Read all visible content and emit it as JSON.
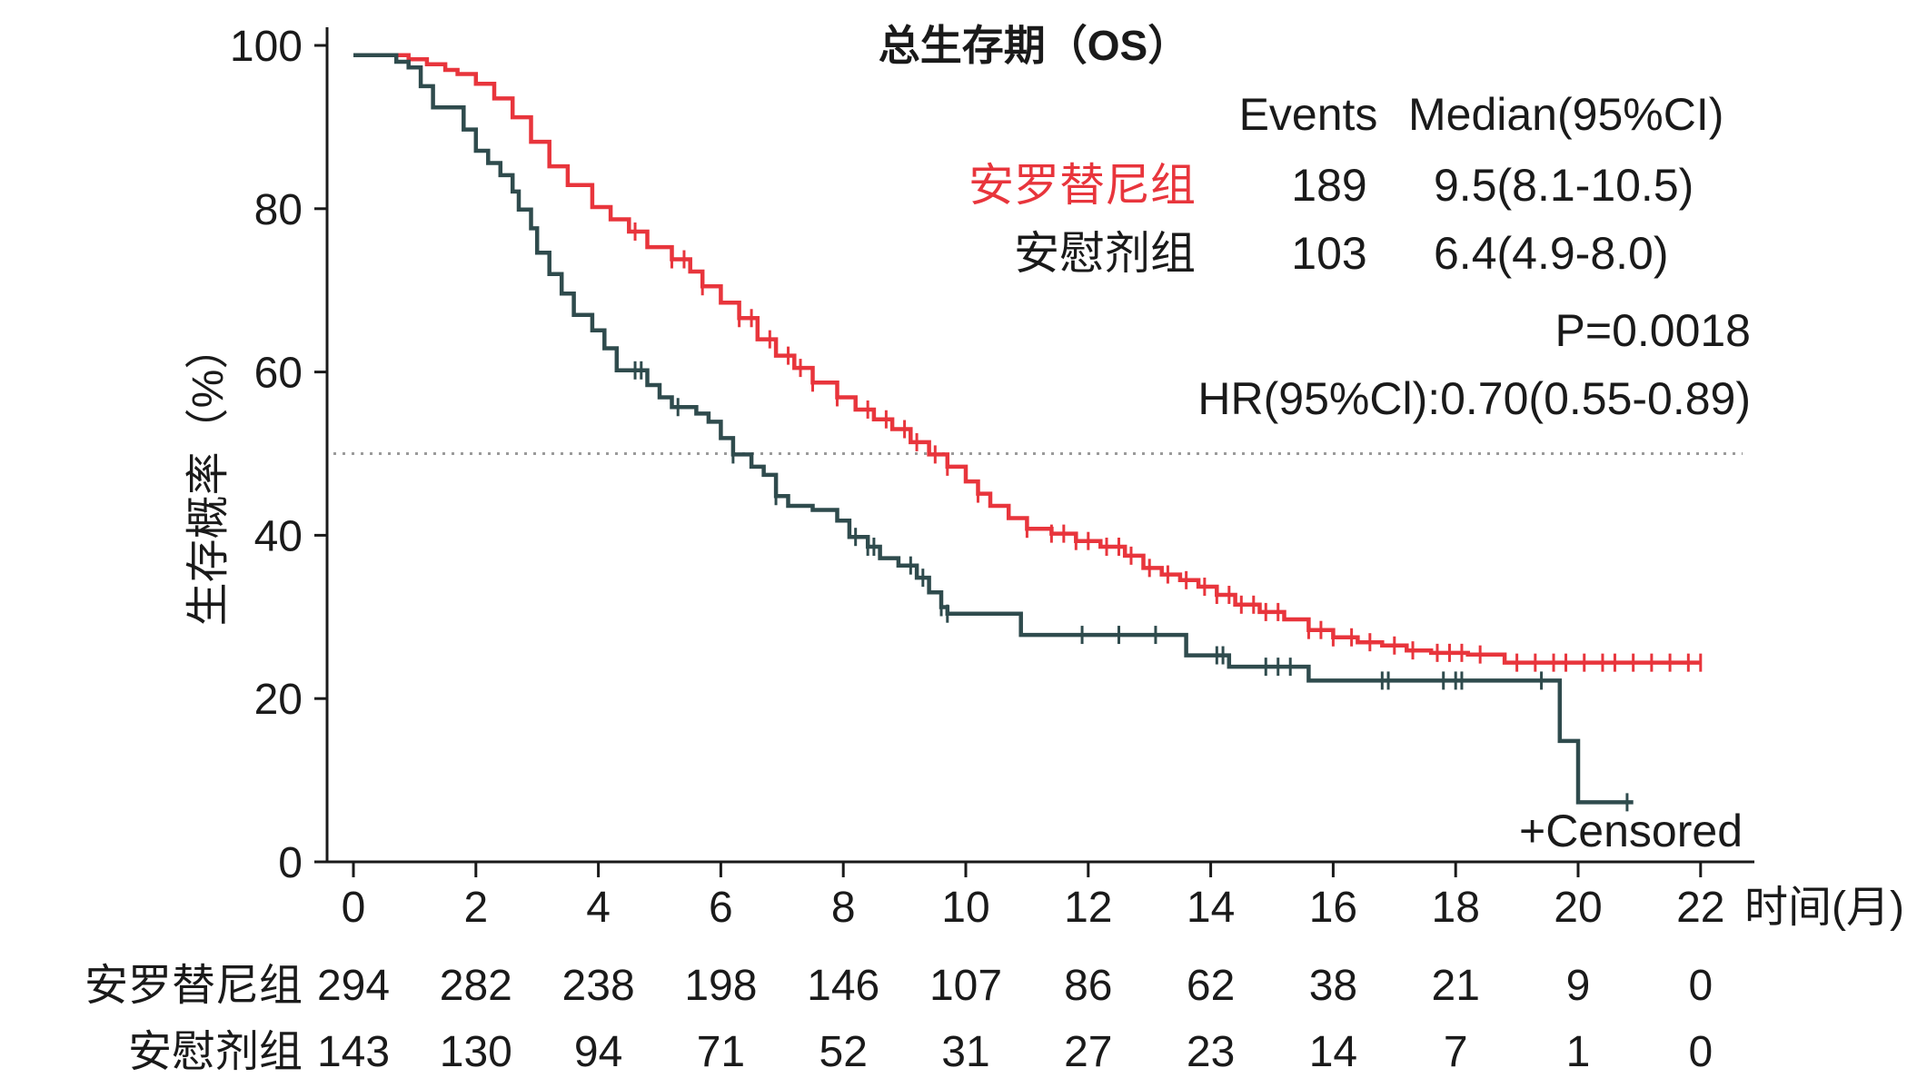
{
  "chart_data": {
    "type": "line",
    "title": "总生存期（OS）",
    "xlabel": "时间(月)",
    "ylabel": "生存概率（%）",
    "xlim": [
      0,
      22
    ],
    "ylim": [
      0,
      100
    ],
    "x_ticks": [
      0,
      2,
      4,
      6,
      8,
      10,
      12,
      14,
      16,
      18,
      20,
      22
    ],
    "y_ticks": [
      0,
      20,
      40,
      60,
      80,
      100
    ],
    "grid": false,
    "legend_placement": "top-right",
    "reference_line_y": 50,
    "legend": {
      "events_header": "Events",
      "median_header": "Median(95%CI)"
    },
    "stats": {
      "p_value": "P=0.0018",
      "hr": "HR(95%Cl):0.70(0.55-0.89)"
    },
    "censored_label": "+Censored",
    "series": [
      {
        "name": "安罗替尼组",
        "color": "#e8353c",
        "events": 189,
        "median": "9.5(8.1-10.5)",
        "points": [
          [
            0,
            98.8
          ],
          [
            0.9,
            98.3
          ],
          [
            1.2,
            97.7
          ],
          [
            1.5,
            97.0
          ],
          [
            1.7,
            96.5
          ],
          [
            2.0,
            95.3
          ],
          [
            2.3,
            93.5
          ],
          [
            2.6,
            91.2
          ],
          [
            2.9,
            88.2
          ],
          [
            3.2,
            85.2
          ],
          [
            3.5,
            82.9
          ],
          [
            3.9,
            80.2
          ],
          [
            4.2,
            78.7
          ],
          [
            4.5,
            77.2
          ],
          [
            4.8,
            75.3
          ],
          [
            5.2,
            73.8
          ],
          [
            5.5,
            72.3
          ],
          [
            5.7,
            70.5
          ],
          [
            6.0,
            68.5
          ],
          [
            6.3,
            66.6
          ],
          [
            6.6,
            64.0
          ],
          [
            6.9,
            62.0
          ],
          [
            7.2,
            60.5
          ],
          [
            7.5,
            58.7
          ],
          [
            7.9,
            56.9
          ],
          [
            8.2,
            55.4
          ],
          [
            8.5,
            54.2
          ],
          [
            8.8,
            53.0
          ],
          [
            9.1,
            51.4
          ],
          [
            9.4,
            49.9
          ],
          [
            9.7,
            48.4
          ],
          [
            10.0,
            46.6
          ],
          [
            10.2,
            45.1
          ],
          [
            10.4,
            43.6
          ],
          [
            10.7,
            42.1
          ],
          [
            11.0,
            40.8
          ],
          [
            11.4,
            40.2
          ],
          [
            11.8,
            39.3
          ],
          [
            12.2,
            38.6
          ],
          [
            12.6,
            37.5
          ],
          [
            12.9,
            36.0
          ],
          [
            13.2,
            35.2
          ],
          [
            13.5,
            34.5
          ],
          [
            13.8,
            33.7
          ],
          [
            14.1,
            32.7
          ],
          [
            14.4,
            31.5
          ],
          [
            14.8,
            30.6
          ],
          [
            15.2,
            29.7
          ],
          [
            15.6,
            28.4
          ],
          [
            16.0,
            27.5
          ],
          [
            16.4,
            26.9
          ],
          [
            16.8,
            26.5
          ],
          [
            17.2,
            25.9
          ],
          [
            17.6,
            25.6
          ],
          [
            18.2,
            25.4
          ],
          [
            18.8,
            24.4
          ],
          [
            22.0,
            24.4
          ]
        ],
        "censored": [
          4.6,
          5.2,
          5.4,
          5.7,
          6.3,
          6.5,
          6.8,
          7.1,
          7.3,
          7.5,
          7.9,
          8.4,
          8.7,
          9.0,
          9.2,
          9.5,
          9.7,
          10.2,
          11.0,
          11.4,
          11.6,
          11.8,
          12.0,
          12.3,
          12.5,
          12.7,
          13.0,
          13.3,
          13.6,
          13.9,
          14.1,
          14.3,
          14.5,
          14.7,
          14.9,
          15.1,
          15.6,
          15.8,
          16.0,
          16.3,
          16.6,
          17.0,
          17.3,
          17.7,
          17.9,
          18.1,
          18.4,
          19.0,
          19.3,
          19.6,
          19.8,
          20.1,
          20.4,
          20.6,
          20.9,
          21.2,
          21.5,
          21.8,
          22.0
        ],
        "at_risk": [
          294,
          282,
          238,
          198,
          146,
          107,
          86,
          62,
          38,
          21,
          9,
          0
        ]
      },
      {
        "name": "安慰剂组",
        "color": "#2f4b4d",
        "events": 103,
        "median": "6.4(4.9-8.0)",
        "points": [
          [
            0,
            98.8
          ],
          [
            0.7,
            98.0
          ],
          [
            0.9,
            97.3
          ],
          [
            1.1,
            95.0
          ],
          [
            1.3,
            92.4
          ],
          [
            1.8,
            89.7
          ],
          [
            2.0,
            87.1
          ],
          [
            2.2,
            85.6
          ],
          [
            2.4,
            84.1
          ],
          [
            2.6,
            82.1
          ],
          [
            2.7,
            79.9
          ],
          [
            2.9,
            77.6
          ],
          [
            3.0,
            74.6
          ],
          [
            3.2,
            72.0
          ],
          [
            3.4,
            69.6
          ],
          [
            3.6,
            67.0
          ],
          [
            3.9,
            65.1
          ],
          [
            4.1,
            62.9
          ],
          [
            4.3,
            60.2
          ],
          [
            4.8,
            58.4
          ],
          [
            5.0,
            56.9
          ],
          [
            5.2,
            55.7
          ],
          [
            5.6,
            54.9
          ],
          [
            5.8,
            53.9
          ],
          [
            6.0,
            51.9
          ],
          [
            6.2,
            49.9
          ],
          [
            6.5,
            48.4
          ],
          [
            6.7,
            47.4
          ],
          [
            6.9,
            44.8
          ],
          [
            7.1,
            43.6
          ],
          [
            7.5,
            43.1
          ],
          [
            7.9,
            41.8
          ],
          [
            8.1,
            39.8
          ],
          [
            8.4,
            38.6
          ],
          [
            8.6,
            37.2
          ],
          [
            8.9,
            36.3
          ],
          [
            9.2,
            34.8
          ],
          [
            9.4,
            33.0
          ],
          [
            9.6,
            31.2
          ],
          [
            9.7,
            30.4
          ],
          [
            10.9,
            27.8
          ],
          [
            13.6,
            25.3
          ],
          [
            14.3,
            23.9
          ],
          [
            15.6,
            22.2
          ],
          [
            19.7,
            14.8
          ],
          [
            20.0,
            7.3
          ],
          [
            20.9,
            7.3
          ]
        ],
        "censored": [
          4.6,
          4.7,
          5.3,
          6.2,
          6.9,
          8.2,
          8.4,
          8.5,
          9.1,
          9.3,
          9.6,
          9.7,
          11.9,
          12.5,
          13.1,
          14.1,
          14.2,
          14.9,
          15.1,
          15.3,
          16.8,
          16.9,
          17.8,
          18.0,
          18.1,
          19.4,
          20.8
        ],
        "at_risk": [
          143,
          130,
          94,
          71,
          52,
          31,
          27,
          23,
          14,
          7,
          1,
          0
        ]
      }
    ]
  }
}
